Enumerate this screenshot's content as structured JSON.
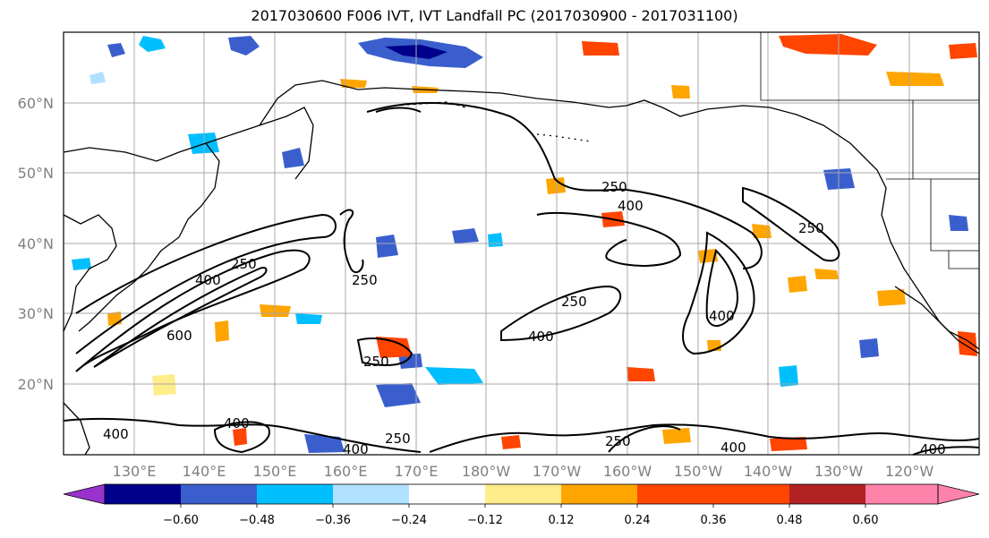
{
  "title": "2017030600 F006 IVT, IVT Landfall PC (2017030900 - 2017031100)",
  "lat_labels": [
    "60°N",
    "50°N",
    "40°N",
    "30°N",
    "20°N"
  ],
  "lon_labels": [
    "130°E",
    "140°E",
    "150°E",
    "160°E",
    "170°E",
    "180°W",
    "170°W",
    "160°W",
    "150°W",
    "140°W",
    "130°W",
    "120°W"
  ],
  "contour_labels": [
    "250",
    "400",
    "600",
    "250",
    "250",
    "400",
    "250",
    "400",
    "250",
    "400",
    "250",
    "400",
    "400",
    "250",
    "400",
    "400",
    "250",
    "400"
  ],
  "colorbar": {
    "ticks": [
      "−0.60",
      "−0.48",
      "−0.36",
      "−0.24",
      "−0.12",
      "0.12",
      "0.24",
      "0.36",
      "0.48",
      "0.60"
    ],
    "colors": [
      "#9932cc",
      "#00008b",
      "#3a5fcd",
      "#00bfff",
      "#b0e2ff",
      "#ffffff",
      "#ffec8b",
      "#ffa500",
      "#ff4500",
      "#b22222",
      "#ff82ab"
    ]
  }
}
